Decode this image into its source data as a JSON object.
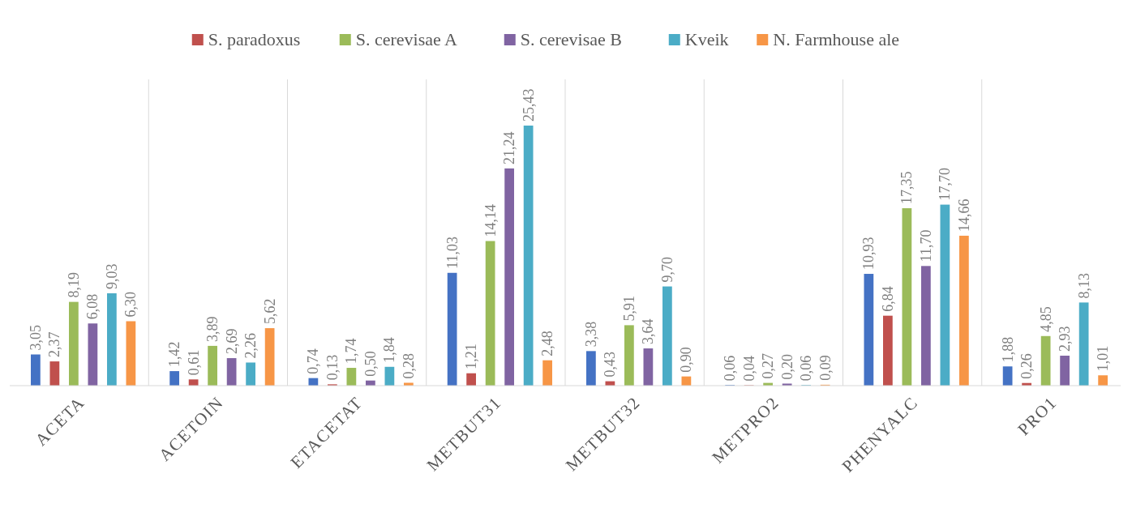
{
  "chart_data": {
    "type": "bar",
    "categories": [
      "ACETA",
      "ACETOIN",
      "ETACETAT",
      "METBUT31",
      "METBUT32",
      "METPRO2",
      "PHENYALC",
      "PRO1"
    ],
    "series": [
      {
        "color": "#4472c4",
        "values": [
          3.05,
          1.42,
          0.74,
          11.03,
          3.38,
          0.06,
          10.93,
          1.88
        ],
        "value_labels": [
          "3,05",
          "1,42",
          "0,74",
          "11,03",
          "3,38",
          "0,06",
          "10,93",
          "1,88"
        ]
      },
      {
        "name": "S. paradoxus",
        "color": "#c0504d",
        "values": [
          2.37,
          0.61,
          0.13,
          1.21,
          0.43,
          0.04,
          6.84,
          0.26
        ],
        "value_labels": [
          "2,37",
          "0,61",
          "0,13",
          "1,21",
          "0,43",
          "0,04",
          "6,84",
          "0,26"
        ]
      },
      {
        "name": "S. cerevisae A",
        "color": "#9bbb59",
        "values": [
          8.19,
          3.89,
          1.74,
          14.14,
          5.91,
          0.27,
          17.35,
          4.85
        ],
        "value_labels": [
          "8,19",
          "3,89",
          "1,74",
          "14,14",
          "5,91",
          "0,27",
          "17,35",
          "4,85"
        ]
      },
      {
        "name": "S. cerevisae B",
        "color": "#8064a2",
        "values": [
          6.08,
          2.69,
          0.5,
          21.24,
          3.64,
          0.2,
          11.7,
          2.93
        ],
        "value_labels": [
          "6,08",
          "2,69",
          "0,50",
          "21,24",
          "3,64",
          "0,20",
          "11,70",
          "2,93"
        ]
      },
      {
        "name": "Kveik",
        "color": "#4bacc6",
        "values": [
          9.03,
          2.26,
          1.84,
          25.43,
          9.7,
          0.06,
          17.7,
          8.13
        ],
        "value_labels": [
          "9,03",
          "2,26",
          "1,84",
          "25,43",
          "9,70",
          "0,06",
          "17,70",
          "8,13"
        ]
      },
      {
        "name": "N. Farmhouse ale",
        "color": "#f79646",
        "values": [
          6.3,
          5.62,
          0.28,
          2.48,
          0.9,
          0.09,
          14.66,
          1.01
        ],
        "value_labels": [
          "6,30",
          "5,62",
          "0,28",
          "2,48",
          "0,90",
          "0,09",
          "14,66",
          "1,01"
        ]
      }
    ],
    "grid": "x",
    "legend": "top"
  }
}
